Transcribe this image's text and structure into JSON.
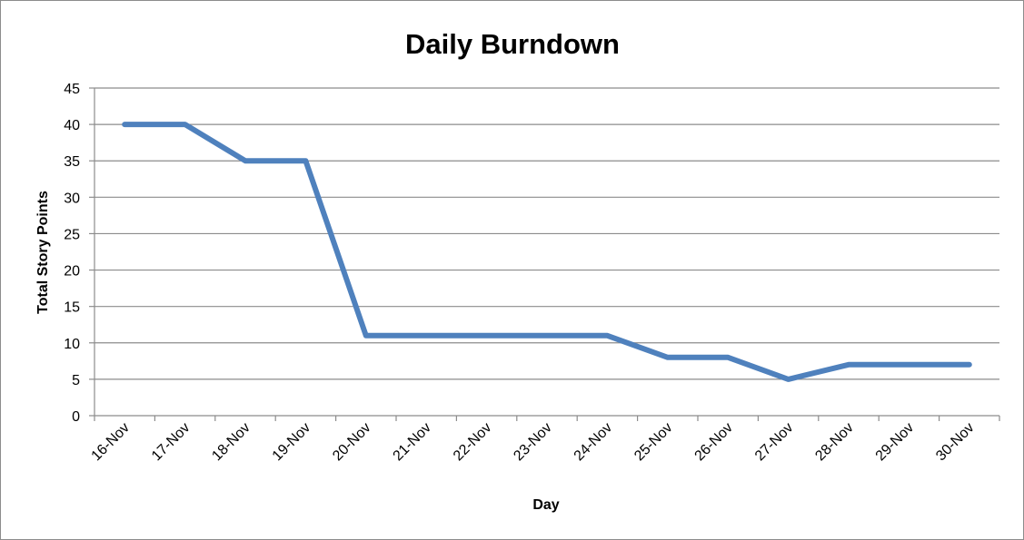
{
  "chart_data": {
    "type": "line",
    "title": "Daily Burndown",
    "xlabel": "Day",
    "ylabel": "Total Story Points",
    "categories": [
      "16-Nov",
      "17-Nov",
      "18-Nov",
      "19-Nov",
      "20-Nov",
      "21-Nov",
      "22-Nov",
      "23-Nov",
      "24-Nov",
      "25-Nov",
      "26-Nov",
      "27-Nov",
      "28-Nov",
      "29-Nov",
      "30-Nov"
    ],
    "series": [
      {
        "values": [
          40,
          40,
          35,
          35,
          11,
          11,
          11,
          11,
          11,
          8,
          8,
          5,
          7,
          7,
          7
        ],
        "color": "#4f81bd"
      }
    ],
    "ylim": [
      0,
      45
    ],
    "yticks": [
      "0",
      "5",
      "10",
      "15",
      "20",
      "25",
      "30",
      "35",
      "40",
      "45"
    ],
    "grid": true,
    "legend": "none"
  }
}
